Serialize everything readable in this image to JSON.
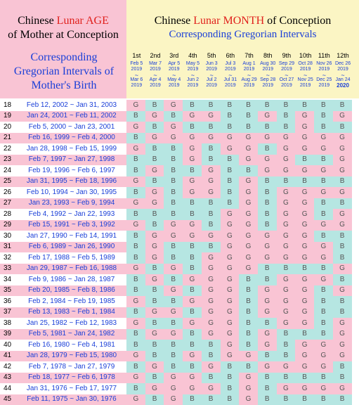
{
  "header": {
    "age_title_1": "Chinese ",
    "age_title_red": "Lunar AGE",
    "age_title_2": "of Mother at Conception",
    "age_sub_1": "Corresponding",
    "age_sub_2": "Gregorian Intervals of",
    "age_sub_3": "Mother's Birth",
    "month_title_1": "Chinese ",
    "month_title_red": "Lunar MONTH",
    "month_title_2": " of Conception",
    "month_sub": "Corresponding Gregorian Intervals"
  },
  "colors": {
    "boy": "#b6e6e2",
    "girl": "#f9c4d4",
    "left_bg": "#f9c4d4",
    "header_bg": "#fbf5c4",
    "blue": "#1a3fd8",
    "red": "#e0201c"
  },
  "months": [
    {
      "ord": "1st",
      "start": "Feb 5",
      "sy": "2019",
      "end": "Mar 6",
      "ey": "2019"
    },
    {
      "ord": "2nd",
      "start": "Mar 7",
      "sy": "2019",
      "end": "Apr 4",
      "ey": "2019"
    },
    {
      "ord": "3rd",
      "start": "Apr 5",
      "sy": "2019",
      "end": "May 4",
      "ey": "2019"
    },
    {
      "ord": "4th",
      "start": "May 5",
      "sy": "2019",
      "end": "Jun 2",
      "ey": "2019"
    },
    {
      "ord": "5th",
      "start": "Jun 3",
      "sy": "2019",
      "end": "Jul 2",
      "ey": "2019"
    },
    {
      "ord": "6th",
      "start": "Jul 3",
      "sy": "2019",
      "end": "Jul 31",
      "ey": "2019"
    },
    {
      "ord": "7th",
      "start": "Aug 1",
      "sy": "2019",
      "end": "Aug 29",
      "ey": "2019"
    },
    {
      "ord": "8th",
      "start": "Aug 30",
      "sy": "2019",
      "end": "Sep 28",
      "ey": "2019"
    },
    {
      "ord": "9th",
      "start": "Sep 29",
      "sy": "2019",
      "end": "Oct 27",
      "ey": "2019"
    },
    {
      "ord": "10th",
      "start": "Oct 28",
      "sy": "2019",
      "end": "Nov 25",
      "ey": "2019"
    },
    {
      "ord": "11th",
      "start": "Nov 26",
      "sy": "2019",
      "end": "Dec 25",
      "ey": "2019"
    },
    {
      "ord": "12th",
      "start": "Dec 26",
      "sy": "2019",
      "end": "Jan 24",
      "ey": "2020"
    }
  ],
  "rows": [
    {
      "age": "18",
      "range": "Feb 12, 2002 ~ Jan 31, 2003",
      "g": "GBGBBBBBBBBB"
    },
    {
      "age": "19",
      "range": "Jan 24, 2001 ~ Feb 11, 2002",
      "g": "BGBGGBBGBGBG"
    },
    {
      "age": "20",
      "range": "Feb 5, 2000 ~ Jan 23, 2001",
      "g": "GBGBBBBBBGBB"
    },
    {
      "age": "21",
      "range": "Feb 16, 1999 ~ Feb 4, 2000",
      "g": "BGGGGGGGGGGG"
    },
    {
      "age": "22",
      "range": "Jan 28, 1998 ~ Feb 15, 1999",
      "g": "GBBGBGGBGGGG"
    },
    {
      "age": "23",
      "range": "Feb 7, 1997 ~ Jan 27, 1998",
      "g": "BBBGBBGGGBBG"
    },
    {
      "age": "24",
      "range": "Feb 19, 1996 ~ Feb 6, 1997",
      "g": "BGBBGBBGGGGG"
    },
    {
      "age": "25",
      "range": "Jan 31, 1995 ~ Feb 18, 1996",
      "g": "GBBGGBGBBBBB"
    },
    {
      "age": "26",
      "range": "Feb 10, 1994 ~ Jan 30, 1995",
      "g": "BGBGGBGBGGGG"
    },
    {
      "age": "27",
      "range": "Jan 23, 1993 ~ Feb 9, 1994",
      "g": "GGBBBBGBGGBB"
    },
    {
      "age": "28",
      "range": "Feb 4, 1992 ~ Jan 22, 1993",
      "g": "BBBBBGGBGGBG"
    },
    {
      "age": "29",
      "range": "Feb 15, 1991 ~ Feb 3, 1992",
      "g": "GBGGBGGBGGGG"
    },
    {
      "age": "30",
      "range": "Jan 27, 1990 ~ Feb 14, 1991",
      "g": "BGGGGGGGGGBB"
    },
    {
      "age": "31",
      "range": "Feb 6, 1989 ~ Jan 26, 1990",
      "g": "BGBBBGGGGGGB"
    },
    {
      "age": "32",
      "range": "Feb 17, 1988 ~ Feb 5, 1989",
      "g": "BGBBGGGGGGGB"
    },
    {
      "age": "33",
      "range": "Jan 29, 1987 ~ Feb 16, 1988",
      "g": "GBGBGGGBBBBG"
    },
    {
      "age": "34",
      "range": "Feb 9, 1986 ~ Jan 28, 1987",
      "g": "BGBGGGBBGGGB"
    },
    {
      "age": "35",
      "range": "Feb 20, 1985 ~ Feb 8, 1986",
      "g": "BBGBGGBGGGBG"
    },
    {
      "age": "36",
      "range": "Feb 2, 1984 ~ Feb 19, 1985",
      "g": "GBBGGGBGGGBB"
    },
    {
      "age": "37",
      "range": "Feb 13, 1983 ~ Feb 1, 1984",
      "g": "BGGBGGBGGGBB"
    },
    {
      "age": "38",
      "range": "Jan 25, 1982 ~ Feb 12, 1983",
      "g": "GBBGGGBBGGBG"
    },
    {
      "age": "39",
      "range": "Feb 5, 1981 ~ Jan 24, 1982",
      "g": "BGGBGGBGBBBG"
    },
    {
      "age": "40",
      "range": "Feb 16, 1980 ~ Feb 4, 1981",
      "g": "BBBBBGBGBGGG"
    },
    {
      "age": "41",
      "range": "Jan 28, 1979 ~ Feb 15, 1980",
      "g": "GBBGBGGBBGGG"
    },
    {
      "age": "42",
      "range": "Feb 7, 1978 ~ Jan 27, 1979",
      "g": "BGBBGBBGGGGB"
    },
    {
      "age": "43",
      "range": "Feb 18, 1977 ~ Feb 6, 1978",
      "g": "GBGGBBGBBBBB"
    },
    {
      "age": "44",
      "range": "Jan 31, 1976 ~ Feb 17, 1977",
      "g": "BGGGGBGBGGGG"
    },
    {
      "age": "45",
      "range": "Feb 11, 1975 ~ Jan 30, 1976",
      "g": "GBGBBBGBBBBB"
    }
  ]
}
